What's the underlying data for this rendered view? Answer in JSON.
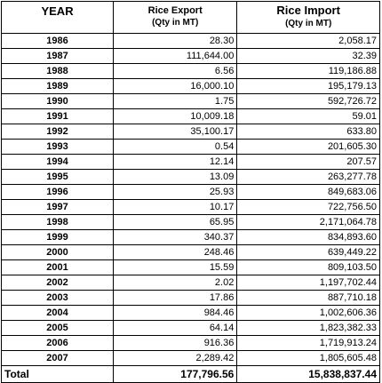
{
  "chart_data": {
    "type": "table",
    "columns": [
      {
        "label": "YEAR",
        "sub": ""
      },
      {
        "label": "Rice Export",
        "sub": "(Qty in MT)"
      },
      {
        "label": "Rice Import",
        "sub": "(Qty in MT)"
      }
    ],
    "rows": [
      {
        "year": "1986",
        "export": "28.30",
        "import": "2,058.17"
      },
      {
        "year": "1987",
        "export": "111,644.00",
        "import": "32.39"
      },
      {
        "year": "1988",
        "export": "6.56",
        "import": "119,186.88"
      },
      {
        "year": "1989",
        "export": "16,000.10",
        "import": "195,179.13"
      },
      {
        "year": "1990",
        "export": "1.75",
        "import": "592,726.72"
      },
      {
        "year": "1991",
        "export": "10,009.18",
        "import": "59.01"
      },
      {
        "year": "1992",
        "export": "35,100.17",
        "import": "633.80"
      },
      {
        "year": "1993",
        "export": "0.54",
        "import": "201,605.30"
      },
      {
        "year": "1994",
        "export": "12.14",
        "import": "207.57"
      },
      {
        "year": "1995",
        "export": "13.09",
        "import": "263,277.78"
      },
      {
        "year": "1996",
        "export": "25.93",
        "import": "849,683.06"
      },
      {
        "year": "1997",
        "export": "10.17",
        "import": "722,756.50"
      },
      {
        "year": "1998",
        "export": "65.95",
        "import": "2,171,064.78"
      },
      {
        "year": "1999",
        "export": "340.37",
        "import": "834,893.60"
      },
      {
        "year": "2000",
        "export": "248.46",
        "import": "639,449.22"
      },
      {
        "year": "2001",
        "export": "15.59",
        "import": "809,103.50"
      },
      {
        "year": "2002",
        "export": "2.02",
        "import": "1,197,702.44"
      },
      {
        "year": "2003",
        "export": "17.86",
        "import": "887,710.18"
      },
      {
        "year": "2004",
        "export": "984.46",
        "import": "1,002,606.36"
      },
      {
        "year": "2005",
        "export": "64.14",
        "import": "1,823,382.33"
      },
      {
        "year": "2006",
        "export": "916.36",
        "import": "1,719,913.24"
      },
      {
        "year": "2007",
        "export": "2,289.42",
        "import": "1,805,605.48"
      }
    ],
    "total": {
      "label": "Total",
      "export": "177,796.56",
      "import": "15,838,837.44"
    }
  }
}
